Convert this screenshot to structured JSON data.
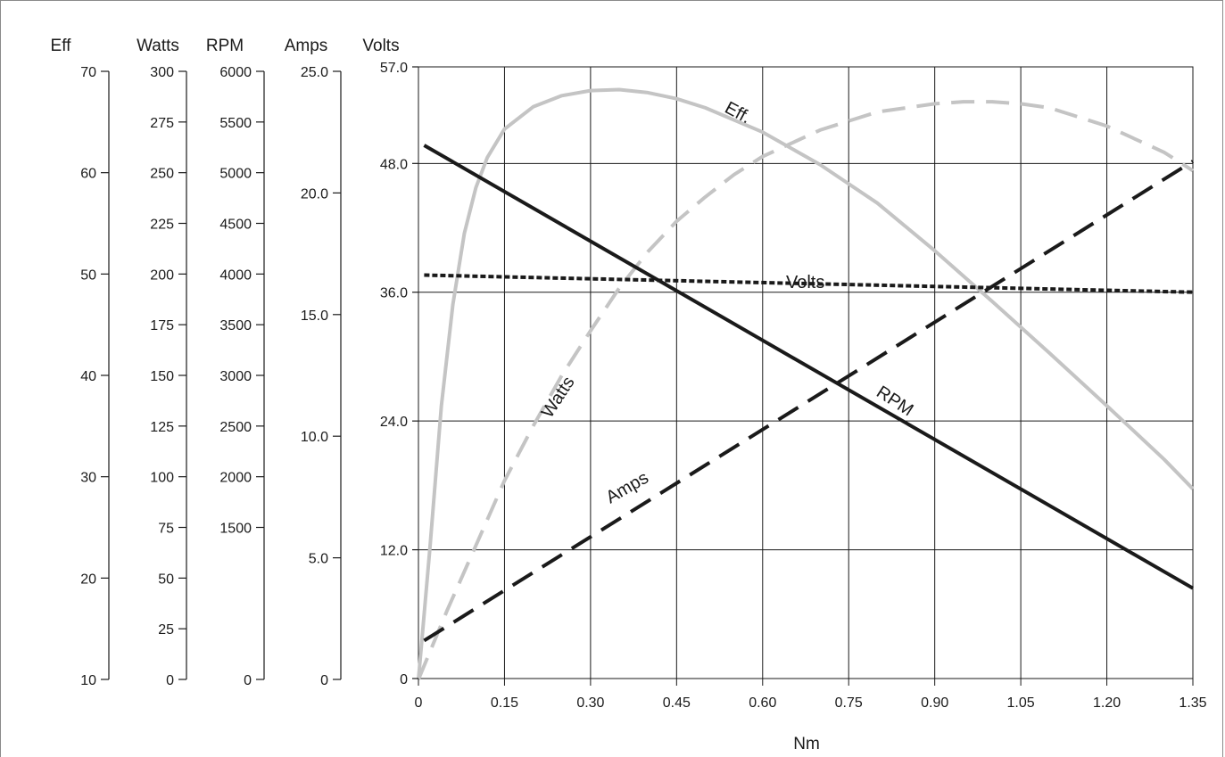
{
  "chart_data": {
    "type": "line",
    "xlabel": "Nm",
    "x_ticks": [
      "0",
      "0.15",
      "0.30",
      "0.45",
      "0.60",
      "0.75",
      "0.90",
      "1.05",
      "1.20",
      "1.35"
    ],
    "xlim": [
      0,
      1.35
    ],
    "grid": true,
    "axes": [
      {
        "id": "eff",
        "title": "Eff",
        "range": [
          10,
          70
        ],
        "ticks": [
          10,
          20,
          30,
          40,
          50,
          60,
          70
        ],
        "tick_labels": [
          "10",
          "20",
          "30",
          "40",
          "50",
          "60",
          "70"
        ]
      },
      {
        "id": "watts",
        "title": "Watts",
        "range": [
          0,
          300
        ],
        "ticks": [
          0,
          25,
          50,
          75,
          100,
          125,
          150,
          175,
          200,
          225,
          250,
          275,
          300
        ],
        "tick_labels": [
          "0",
          "25",
          "50",
          "75",
          "100",
          "125",
          "150",
          "175",
          "200",
          "225",
          "250",
          "275",
          "300"
        ]
      },
      {
        "id": "rpm",
        "title": "RPM",
        "range": [
          0,
          6000
        ],
        "ticks": [
          0,
          1500,
          2000,
          2500,
          3000,
          3500,
          4000,
          4500,
          5000,
          5500,
          6000
        ],
        "tick_labels": [
          "0",
          "1500",
          "2000",
          "2500",
          "3000",
          "3500",
          "4000",
          "4500",
          "5000",
          "5500",
          "6000"
        ]
      },
      {
        "id": "amps",
        "title": "Amps",
        "range": [
          0,
          25
        ],
        "ticks": [
          0,
          5,
          10,
          15,
          20,
          25
        ],
        "tick_labels": [
          "0",
          "5.0",
          "10.0",
          "15.0",
          "20.0",
          "25.0"
        ]
      },
      {
        "id": "volts",
        "title": "Volts",
        "range": [
          0,
          57
        ],
        "ticks": [
          0,
          12,
          24,
          36,
          48,
          57
        ],
        "tick_labels": [
          "0",
          "12.0",
          "24.0",
          "36.0",
          "48.0",
          "57.0"
        ]
      }
    ],
    "series": [
      {
        "name": "Eff.",
        "axis": "eff",
        "color": "#c4c4c4",
        "style": "solid",
        "x": [
          0,
          0.02,
          0.04,
          0.06,
          0.08,
          0.1,
          0.12,
          0.15,
          0.2,
          0.25,
          0.3,
          0.35,
          0.4,
          0.45,
          0.5,
          0.6,
          0.7,
          0.8,
          0.9,
          1.0,
          1.1,
          1.2,
          1.3,
          1.35
        ],
        "y": [
          10,
          23,
          37,
          47,
          54,
          58.5,
          61.5,
          64.3,
          66.5,
          67.6,
          68.1,
          68.2,
          67.9,
          67.3,
          66.4,
          64,
          60.8,
          57,
          52.3,
          47.3,
          42.2,
          37,
          31.7,
          28.8
        ]
      },
      {
        "name": "Watts",
        "axis": "watts",
        "color": "#c4c4c4",
        "style": "dashed",
        "x": [
          0,
          0.05,
          0.1,
          0.15,
          0.2,
          0.25,
          0.3,
          0.35,
          0.4,
          0.45,
          0.5,
          0.55,
          0.6,
          0.7,
          0.8,
          0.9,
          0.95,
          1.0,
          1.05,
          1.1,
          1.2,
          1.3,
          1.35
        ],
        "y": [
          0,
          34,
          66,
          98,
          125,
          150,
          172,
          193,
          211,
          226,
          238,
          249,
          258,
          271,
          280,
          284,
          285,
          285,
          284,
          282,
          273,
          260,
          251
        ]
      },
      {
        "name": "RPM",
        "axis": "rpm",
        "color": "#1a1a1a",
        "style": "solid",
        "x": [
          0.01,
          1.35
        ],
        "y": [
          5270,
          900
        ]
      },
      {
        "name": "Amps",
        "axis": "amps",
        "color": "#1a1a1a",
        "style": "dashed",
        "x": [
          0.01,
          1.35
        ],
        "y": [
          1.6,
          21.3
        ]
      },
      {
        "name": "Volts",
        "axis": "volts",
        "color": "#1a1a1a",
        "style": "dotted",
        "x": [
          0.01,
          1.35
        ],
        "y": [
          37.6,
          36
        ]
      }
    ]
  }
}
